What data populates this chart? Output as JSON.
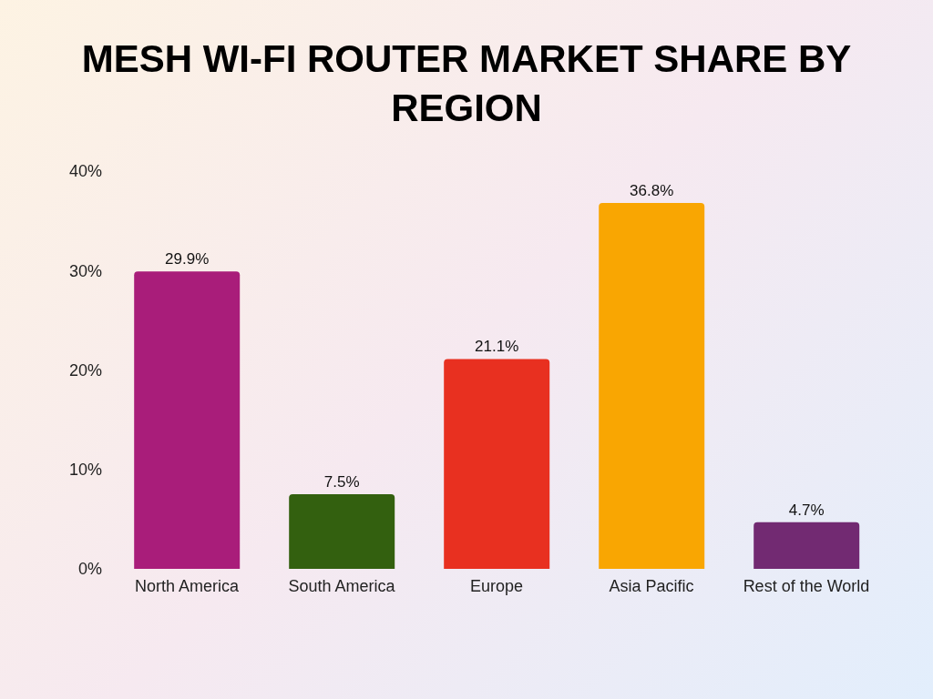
{
  "chart_data": {
    "type": "bar",
    "title": "MESH WI-FI ROUTER MARKET SHARE BY REGION",
    "categories": [
      "North America",
      "South America",
      "Europe",
      "Asia Pacific",
      "Rest of the World"
    ],
    "values": [
      29.9,
      7.5,
      21.1,
      36.8,
      4.7
    ],
    "colors": [
      "#a91d7a",
      "#33600f",
      "#e83020",
      "#f9a602",
      "#722a72"
    ],
    "value_labels": [
      "29.9%",
      "7.5%",
      "21.1%",
      "36.8%",
      "4.7%"
    ],
    "ylim": [
      0,
      40
    ],
    "yticks": [
      {
        "value": 0,
        "label": "0%"
      },
      {
        "value": 10,
        "label": "10%"
      },
      {
        "value": 20,
        "label": "20%"
      },
      {
        "value": 30,
        "label": "30%"
      },
      {
        "value": 40,
        "label": "40%"
      }
    ],
    "grid": false,
    "legend": false
  }
}
